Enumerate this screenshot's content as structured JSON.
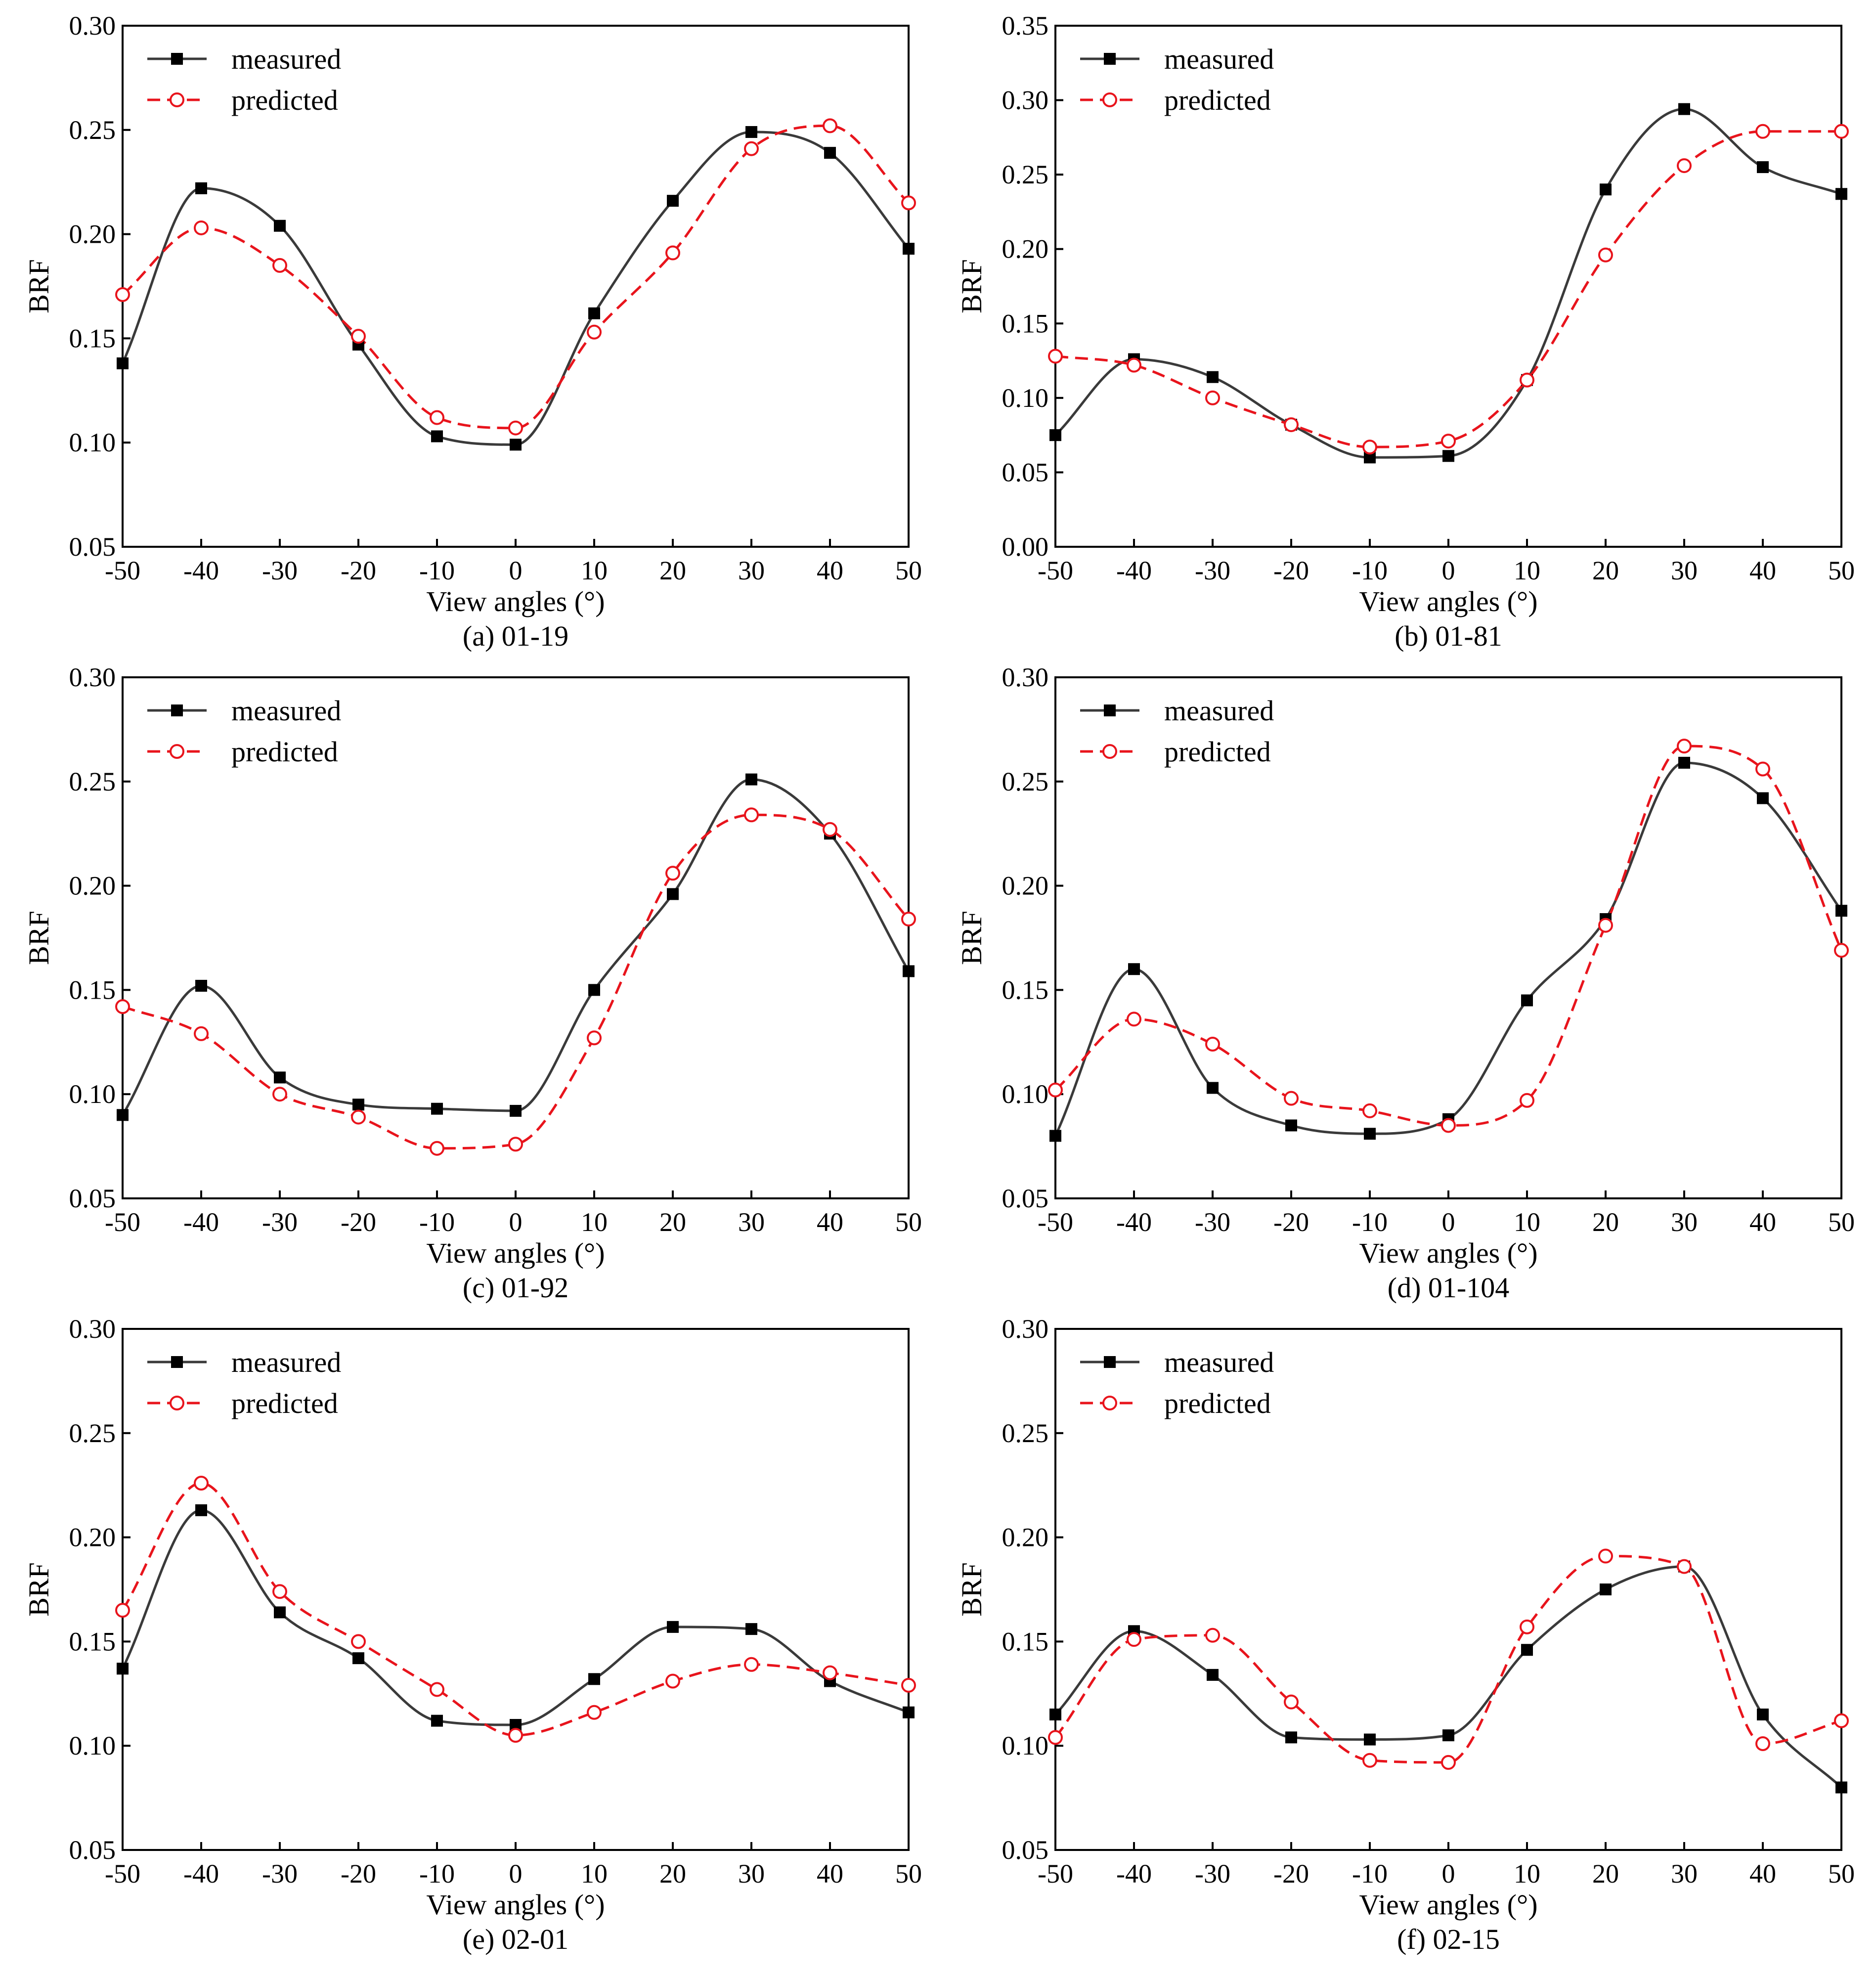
{
  "figure": {
    "shared": {
      "xlabel": "View angles (°)",
      "ylabel": "BRF",
      "legend": {
        "measured": "measured",
        "predicted": "predicted"
      },
      "colors": {
        "measured": "#3a3a3a",
        "measured_marker": "#000000",
        "predicted": "#e8141c",
        "frame": "#000000"
      }
    }
  },
  "chart_data": [
    {
      "type": "line",
      "caption": "(a) 01-19",
      "xlabel": "View angles (°)",
      "ylabel": "BRF",
      "x": [
        -50,
        -40,
        -30,
        -20,
        -10,
        0,
        10,
        20,
        30,
        40,
        50
      ],
      "xlim": [
        -50,
        50
      ],
      "ylim": [
        0.05,
        0.3
      ],
      "yticks": [
        "0.05",
        "0.10",
        "0.15",
        "0.20",
        "0.25",
        "0.30"
      ],
      "xticks": [
        "-50",
        "-40",
        "-30",
        "-20",
        "-10",
        "0",
        "10",
        "20",
        "30",
        "40",
        "50"
      ],
      "legend_position": "top-left",
      "series": [
        {
          "name": "measured",
          "style": "solid",
          "marker": "filled-square",
          "values": [
            0.138,
            0.222,
            0.204,
            0.147,
            0.103,
            0.099,
            0.162,
            0.216,
            0.249,
            0.239,
            0.193
          ]
        },
        {
          "name": "predicted",
          "style": "dashed",
          "marker": "open-circle",
          "values": [
            0.171,
            0.203,
            0.185,
            0.151,
            0.112,
            0.107,
            0.153,
            0.191,
            0.241,
            0.252,
            0.215
          ]
        }
      ]
    },
    {
      "type": "line",
      "caption": "(b) 01-81",
      "xlabel": "View angles (°)",
      "ylabel": "BRF",
      "x": [
        -50,
        -40,
        -30,
        -20,
        -10,
        0,
        10,
        20,
        30,
        40,
        50
      ],
      "xlim": [
        -50,
        50
      ],
      "ylim": [
        0.0,
        0.35
      ],
      "yticks": [
        "0.00",
        "0.05",
        "0.10",
        "0.15",
        "0.20",
        "0.25",
        "0.30",
        "0.35"
      ],
      "xticks": [
        "-50",
        "-40",
        "-30",
        "-20",
        "-10",
        "0",
        "10",
        "20",
        "30",
        "40",
        "50"
      ],
      "legend_position": "top-left",
      "series": [
        {
          "name": "measured",
          "style": "solid",
          "marker": "filled-square",
          "values": [
            0.075,
            0.126,
            0.114,
            0.082,
            0.06,
            0.061,
            0.112,
            0.24,
            0.294,
            0.255,
            0.237
          ]
        },
        {
          "name": "predicted",
          "style": "dashed",
          "marker": "open-circle",
          "values": [
            0.128,
            0.122,
            0.1,
            0.082,
            0.067,
            0.071,
            0.112,
            0.196,
            0.256,
            0.279,
            0.279
          ]
        }
      ]
    },
    {
      "type": "line",
      "caption": "(c) 01-92",
      "xlabel": "View angles (°)",
      "ylabel": "BRF",
      "x": [
        -50,
        -40,
        -30,
        -20,
        -10,
        0,
        10,
        20,
        30,
        40,
        50
      ],
      "xlim": [
        -50,
        50
      ],
      "ylim": [
        0.05,
        0.3
      ],
      "yticks": [
        "0.05",
        "0.10",
        "0.15",
        "0.20",
        "0.25",
        "0.30"
      ],
      "xticks": [
        "-50",
        "-40",
        "-30",
        "-20",
        "-10",
        "0",
        "10",
        "20",
        "30",
        "40",
        "50"
      ],
      "legend_position": "top-left",
      "series": [
        {
          "name": "measured",
          "style": "solid",
          "marker": "filled-square",
          "values": [
            0.09,
            0.152,
            0.108,
            0.095,
            0.093,
            0.092,
            0.15,
            0.196,
            0.251,
            0.225,
            0.159
          ]
        },
        {
          "name": "predicted",
          "style": "dashed",
          "marker": "open-circle",
          "values": [
            0.142,
            0.129,
            0.1,
            0.089,
            0.074,
            0.076,
            0.127,
            0.206,
            0.234,
            0.227,
            0.184
          ]
        }
      ]
    },
    {
      "type": "line",
      "caption": "(d) 01-104",
      "xlabel": "View angles (°)",
      "ylabel": "BRF",
      "x": [
        -50,
        -40,
        -30,
        -20,
        -10,
        0,
        10,
        20,
        30,
        40,
        50
      ],
      "xlim": [
        -50,
        50
      ],
      "ylim": [
        0.05,
        0.3
      ],
      "yticks": [
        "0.05",
        "0.10",
        "0.15",
        "0.20",
        "0.25",
        "0.30"
      ],
      "xticks": [
        "-50",
        "-40",
        "-30",
        "-20",
        "-10",
        "0",
        "10",
        "20",
        "30",
        "40",
        "50"
      ],
      "legend_position": "top-left",
      "series": [
        {
          "name": "measured",
          "style": "solid",
          "marker": "filled-square",
          "values": [
            0.08,
            0.16,
            0.103,
            0.085,
            0.081,
            0.088,
            0.145,
            0.184,
            0.259,
            0.242,
            0.188
          ]
        },
        {
          "name": "predicted",
          "style": "dashed",
          "marker": "open-circle",
          "values": [
            0.102,
            0.136,
            0.124,
            0.098,
            0.092,
            0.085,
            0.097,
            0.181,
            0.267,
            0.256,
            0.169
          ]
        }
      ]
    },
    {
      "type": "line",
      "caption": "(e) 02-01",
      "xlabel": "View angles (°)",
      "ylabel": "BRF",
      "x": [
        -50,
        -40,
        -30,
        -20,
        -10,
        0,
        10,
        20,
        30,
        40,
        50
      ],
      "xlim": [
        -50,
        50
      ],
      "ylim": [
        0.05,
        0.3
      ],
      "yticks": [
        "0.05",
        "0.10",
        "0.15",
        "0.20",
        "0.25",
        "0.30"
      ],
      "xticks": [
        "-50",
        "-40",
        "-30",
        "-20",
        "-10",
        "0",
        "10",
        "20",
        "30",
        "40",
        "50"
      ],
      "legend_position": "top-left",
      "series": [
        {
          "name": "measured",
          "style": "solid",
          "marker": "filled-square",
          "values": [
            0.137,
            0.213,
            0.164,
            0.142,
            0.112,
            0.11,
            0.132,
            0.157,
            0.156,
            0.131,
            0.116
          ]
        },
        {
          "name": "predicted",
          "style": "dashed",
          "marker": "open-circle",
          "values": [
            0.165,
            0.226,
            0.174,
            0.15,
            0.127,
            0.105,
            0.116,
            0.131,
            0.139,
            0.135,
            0.129
          ]
        }
      ]
    },
    {
      "type": "line",
      "caption": "(f) 02-15",
      "xlabel": "View angles (°)",
      "ylabel": "BRF",
      "x": [
        -50,
        -40,
        -30,
        -20,
        -10,
        0,
        10,
        20,
        30,
        40,
        50
      ],
      "xlim": [
        -50,
        50
      ],
      "ylim": [
        0.05,
        0.3
      ],
      "yticks": [
        "0.05",
        "0.10",
        "0.15",
        "0.20",
        "0.25",
        "0.30"
      ],
      "xticks": [
        "-50",
        "-40",
        "-30",
        "-20",
        "-10",
        "0",
        "10",
        "20",
        "30",
        "40",
        "50"
      ],
      "legend_position": "top-left",
      "series": [
        {
          "name": "measured",
          "style": "solid",
          "marker": "filled-square",
          "values": [
            0.115,
            0.155,
            0.134,
            0.104,
            0.103,
            0.105,
            0.146,
            0.175,
            0.186,
            0.115,
            0.08
          ]
        },
        {
          "name": "predicted",
          "style": "dashed",
          "marker": "open-circle",
          "values": [
            0.104,
            0.151,
            0.153,
            0.121,
            0.093,
            0.092,
            0.157,
            0.191,
            0.186,
            0.101,
            0.112
          ]
        }
      ]
    }
  ]
}
